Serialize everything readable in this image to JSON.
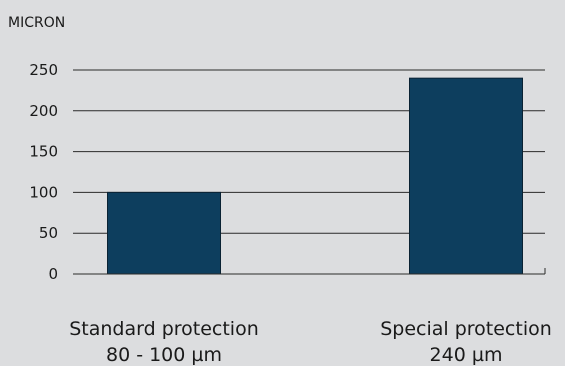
{
  "chart_data": {
    "type": "bar",
    "ylabel": "MICRON",
    "ylim": [
      0,
      250
    ],
    "yticks": [
      0,
      50,
      100,
      150,
      200,
      250
    ],
    "grid": true,
    "categories": [
      {
        "name": "Standard protection",
        "sub": "80 - 100 µm"
      },
      {
        "name": "Special protection",
        "sub": "240 µm"
      }
    ],
    "values": [
      100,
      240
    ],
    "bar_color": "#0d3e5e"
  }
}
